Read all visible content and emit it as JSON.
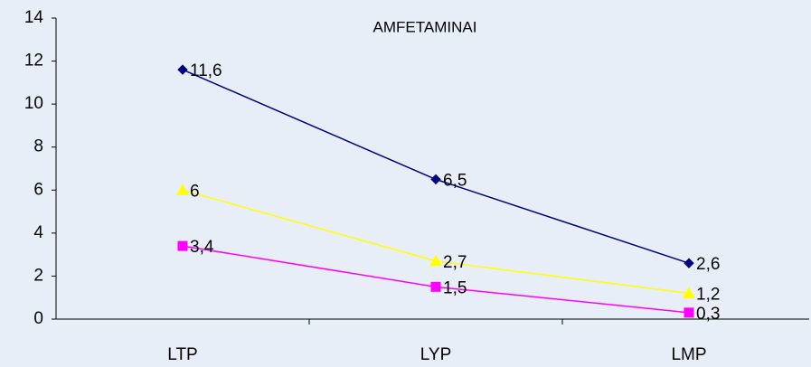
{
  "chart_data": {
    "type": "line",
    "title": "AMFETAMINAI",
    "categories": [
      "LTP",
      "LYP",
      "LMP"
    ],
    "series": [
      {
        "color": "#000080",
        "marker": "diamond",
        "values": [
          11.6,
          6.5,
          2.6
        ],
        "value_labels": [
          "11,6",
          "6,5",
          "2,6"
        ]
      },
      {
        "color": "#ffff00",
        "marker": "triangle",
        "values": [
          6,
          2.7,
          1.2
        ],
        "value_labels": [
          "6",
          "2,7",
          "1,2"
        ]
      },
      {
        "color": "#ff00ff",
        "marker": "square",
        "values": [
          3.4,
          1.5,
          0.3
        ],
        "value_labels": [
          "3,4",
          "1,5",
          "0,3"
        ]
      }
    ],
    "ylim": [
      0,
      14
    ],
    "yticks": [
      0,
      2,
      4,
      6,
      8,
      10,
      12,
      14
    ],
    "grid": false
  }
}
